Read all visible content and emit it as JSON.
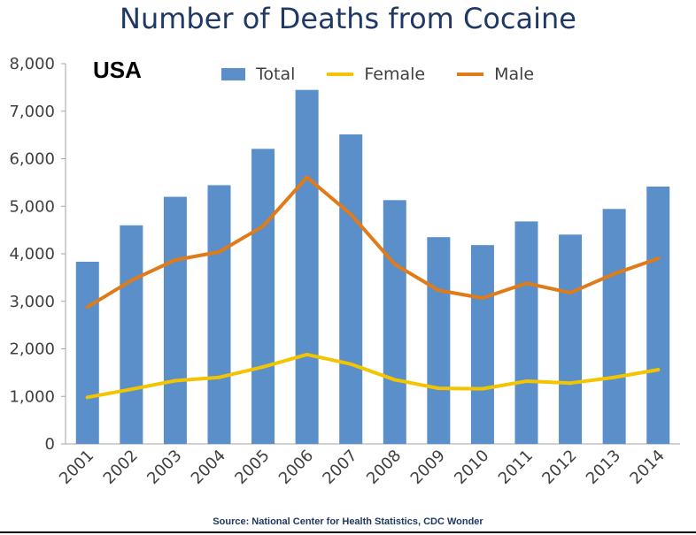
{
  "chart_data": {
    "type": "bar",
    "title": "Number of Deaths from Cocaine",
    "region_label": "USA",
    "source": "Source: National Center for Health Statistics, CDC Wonder",
    "categories": [
      "2001",
      "2002",
      "2003",
      "2004",
      "2005",
      "2006",
      "2007",
      "2008",
      "2009",
      "2010",
      "2011",
      "2012",
      "2013",
      "2014"
    ],
    "ylim": [
      0,
      8000
    ],
    "yticks": [
      "0",
      "1,000",
      "2,000",
      "3,000",
      "4,000",
      "5,000",
      "6,000",
      "7,000",
      "8,000"
    ],
    "series": [
      {
        "name": "Total",
        "kind": "bar",
        "color": "#5b8fc9",
        "values": [
          3833,
          4599,
          5199,
          5443,
          6208,
          7448,
          6512,
          5129,
          4350,
          4183,
          4681,
          4404,
          4944,
          5415
        ]
      },
      {
        "name": "Female",
        "kind": "line",
        "color": "#f2c500",
        "values": [
          980,
          1150,
          1330,
          1400,
          1620,
          1880,
          1680,
          1350,
          1170,
          1160,
          1320,
          1280,
          1400,
          1560
        ]
      },
      {
        "name": "Male",
        "kind": "line",
        "color": "#e07b1a",
        "values": [
          2880,
          3440,
          3870,
          4040,
          4580,
          5610,
          4830,
          3780,
          3230,
          3070,
          3380,
          3180,
          3580,
          3900
        ]
      }
    ],
    "grid": false,
    "legend_position": "top"
  }
}
